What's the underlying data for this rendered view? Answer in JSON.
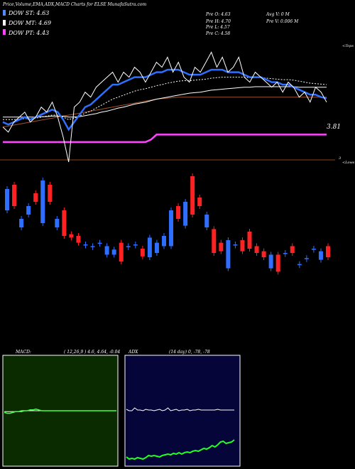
{
  "header": {
    "title": "Price,Volume,EMA,ADX,MACD Charts for ELSE MunafaSutra.com",
    "legend": [
      {
        "label": "DOW ST: 4.63",
        "color": "#4e8cff"
      },
      {
        "label": "DOW MT: 4.69",
        "color": "#ffffff"
      },
      {
        "label": "DOW PT: 4.43",
        "color": "#ff44ff"
      }
    ],
    "stats_col1": [
      "Pre  O: 4.63",
      "Pre  H: 4.70",
      "Pre  L: 4.57",
      "Pre  C: 4.58"
    ],
    "stats_col2": [
      "Avg V: 0  M",
      "Pre  V: 0.006  M"
    ]
  },
  "price_panel": {
    "top_label": "<Tops",
    "bottom_label": "<Lows",
    "price_label": "3.81",
    "bottom_tick": "3",
    "top_markers": "5",
    "bottom_markers": "3"
  },
  "macd_panel": {
    "label": "MACD:",
    "params": "( 12,26,9 ) 4.6, 4.64, -0.04",
    "bg_color": "#0a2a00"
  },
  "adx_panel": {
    "label": "ADX",
    "params": "(14  day) 0, -78, -78",
    "bg_color": "#05053a"
  },
  "chart_data": {
    "type": "line",
    "price_series": [
      4.4,
      4.3,
      4.5,
      4.6,
      4.7,
      4.5,
      4.6,
      4.8,
      4.7,
      4.9,
      4.6,
      4.2,
      3.7,
      4.8,
      4.9,
      5.1,
      5.0,
      5.2,
      5.3,
      5.4,
      5.5,
      5.3,
      5.5,
      5.4,
      5.6,
      5.5,
      5.3,
      5.5,
      5.7,
      5.6,
      5.8,
      5.5,
      5.7,
      5.4,
      5.3,
      5.6,
      5.5,
      5.7,
      5.9,
      5.6,
      5.8,
      5.5,
      5.6,
      5.8,
      5.4,
      5.3,
      5.5,
      5.4,
      5.3,
      5.2,
      5.3,
      5.1,
      5.3,
      5.2,
      5.0,
      5.1,
      4.9,
      5.2,
      5.1,
      4.9
    ],
    "ema_short": [
      4.5,
      4.45,
      4.5,
      4.55,
      4.6,
      4.55,
      4.6,
      4.65,
      4.7,
      4.75,
      4.7,
      4.55,
      4.35,
      4.5,
      4.65,
      4.8,
      4.85,
      4.95,
      5.05,
      5.15,
      5.25,
      5.25,
      5.3,
      5.35,
      5.4,
      5.4,
      5.4,
      5.45,
      5.5,
      5.5,
      5.55,
      5.55,
      5.55,
      5.5,
      5.45,
      5.45,
      5.45,
      5.5,
      5.55,
      5.55,
      5.55,
      5.5,
      5.5,
      5.5,
      5.45,
      5.4,
      5.4,
      5.4,
      5.35,
      5.3,
      5.3,
      5.25,
      5.25,
      5.2,
      5.15,
      5.1,
      5.05,
      5.05,
      5.0,
      4.98
    ],
    "ema_mid": [
      4.55,
      4.55,
      4.55,
      4.56,
      4.57,
      4.57,
      4.58,
      4.6,
      4.62,
      4.64,
      4.64,
      4.6,
      4.55,
      4.58,
      4.62,
      4.68,
      4.72,
      4.78,
      4.84,
      4.9,
      4.96,
      5.0,
      5.04,
      5.08,
      5.12,
      5.15,
      5.17,
      5.2,
      5.23,
      5.25,
      5.28,
      5.3,
      5.32,
      5.33,
      5.33,
      5.34,
      5.35,
      5.36,
      5.38,
      5.39,
      5.4,
      5.4,
      5.4,
      5.4,
      5.4,
      5.39,
      5.39,
      5.39,
      5.38,
      5.37,
      5.36,
      5.35,
      5.35,
      5.34,
      5.32,
      5.3,
      5.28,
      5.27,
      5.26,
      5.25
    ],
    "ema_long": [
      4.6,
      4.6,
      4.6,
      4.6,
      4.6,
      4.6,
      4.6,
      4.61,
      4.61,
      4.62,
      4.62,
      4.62,
      4.6,
      4.6,
      4.61,
      4.63,
      4.65,
      4.67,
      4.7,
      4.72,
      4.75,
      4.78,
      4.8,
      4.83,
      4.86,
      4.88,
      4.9,
      4.93,
      4.96,
      4.98,
      5.0,
      5.02,
      5.04,
      5.06,
      5.08,
      5.09,
      5.1,
      5.12,
      5.14,
      5.15,
      5.16,
      5.17,
      5.18,
      5.19,
      5.2,
      5.2,
      5.21,
      5.21,
      5.21,
      5.21,
      5.21,
      5.21,
      5.21,
      5.21,
      5.2,
      5.2,
      5.2,
      5.2,
      5.2,
      5.2
    ],
    "support": [
      4.4,
      4.42,
      4.44,
      4.46,
      4.48,
      4.5,
      4.52,
      4.54,
      4.56,
      4.58,
      4.6,
      4.62,
      4.64,
      4.66,
      4.68,
      4.7,
      4.72,
      4.74,
      4.76,
      4.78,
      4.8,
      4.82,
      4.84,
      4.86,
      4.88,
      4.9,
      4.92,
      4.94,
      4.96,
      4.97,
      4.98,
      4.99,
      5.0,
      5.0,
      5.0,
      5.0,
      5.0,
      5.0,
      5.0,
      5.0,
      5.0,
      5.0,
      5.0,
      5.0,
      5.0,
      5.0,
      5.0,
      5.0,
      5.0,
      5.0,
      5.0,
      5.0,
      5.0,
      5.0,
      5.0,
      5.0,
      5.0,
      5.0,
      5.0,
      5.0
    ],
    "dow_pt": [
      4.1,
      4.1,
      4.1,
      4.1,
      4.1,
      4.1,
      4.1,
      4.1,
      4.1,
      4.1,
      4.1,
      4.1,
      4.1,
      4.1,
      4.1,
      4.1,
      4.1,
      4.1,
      4.1,
      4.1,
      4.1,
      4.1,
      4.1,
      4.1,
      4.1,
      4.1,
      4.1,
      4.15,
      4.25,
      4.25,
      4.25,
      4.25,
      4.25,
      4.25,
      4.25,
      4.25,
      4.25,
      4.25,
      4.25,
      4.25,
      4.25,
      4.25,
      4.25,
      4.25,
      4.25,
      4.25,
      4.25,
      4.25,
      4.25,
      4.25,
      4.25,
      4.25,
      4.25,
      4.25,
      4.25,
      4.25,
      4.25,
      4.25,
      4.25,
      4.25
    ],
    "candles": [
      {
        "dir": "up",
        "o": 40,
        "c": 15
      },
      {
        "dir": "down",
        "o": 10,
        "c": 35
      },
      {
        "dir": "up",
        "o": 60,
        "c": 50
      },
      {
        "dir": "up",
        "o": 45,
        "c": 35
      },
      {
        "dir": "down",
        "o": 20,
        "c": 30
      },
      {
        "dir": "up",
        "o": 55,
        "c": 5
      },
      {
        "dir": "down",
        "o": 10,
        "c": 30
      },
      {
        "dir": "up",
        "o": 60,
        "c": 50
      },
      {
        "dir": "down",
        "o": 40,
        "c": 70
      },
      {
        "dir": "down",
        "o": 68,
        "c": 72
      },
      {
        "dir": "down",
        "o": 70,
        "c": 78
      },
      {
        "dir": "flat",
        "o": 80,
        "c": 80
      },
      {
        "dir": "flat",
        "o": 82,
        "c": 82
      },
      {
        "dir": "flat",
        "o": 78,
        "c": 78
      },
      {
        "dir": "up",
        "o": 92,
        "c": 82
      },
      {
        "dir": "up",
        "o": 92,
        "c": 86
      },
      {
        "dir": "down",
        "o": 78,
        "c": 100
      },
      {
        "dir": "flat",
        "o": 82,
        "c": 82
      },
      {
        "dir": "flat",
        "o": 80,
        "c": 80
      },
      {
        "dir": "down",
        "o": 85,
        "c": 94
      },
      {
        "dir": "up",
        "o": 95,
        "c": 72
      },
      {
        "dir": "up",
        "o": 90,
        "c": 78
      },
      {
        "dir": "up",
        "o": 82,
        "c": 70
      },
      {
        "dir": "up",
        "o": 82,
        "c": 40
      },
      {
        "dir": "down",
        "o": 35,
        "c": 50
      },
      {
        "dir": "up",
        "o": 58,
        "c": 30
      },
      {
        "dir": "down",
        "o": 0,
        "c": 45
      },
      {
        "dir": "down",
        "o": 25,
        "c": 35
      },
      {
        "dir": "up",
        "o": 60,
        "c": 45
      },
      {
        "dir": "down",
        "o": 62,
        "c": 90
      },
      {
        "dir": "down",
        "o": 78,
        "c": 88
      },
      {
        "dir": "up",
        "o": 108,
        "c": 75
      },
      {
        "dir": "flat",
        "o": 80,
        "c": 80
      },
      {
        "dir": "down",
        "o": 75,
        "c": 88
      },
      {
        "dir": "down",
        "o": 65,
        "c": 85
      },
      {
        "dir": "down",
        "o": 82,
        "c": 90
      },
      {
        "dir": "down",
        "o": 88,
        "c": 95
      },
      {
        "dir": "up",
        "o": 108,
        "c": 92
      },
      {
        "dir": "down",
        "o": 92,
        "c": 112
      },
      {
        "dir": "flat",
        "o": 90,
        "c": 90
      },
      {
        "dir": "down",
        "o": 82,
        "c": 90
      },
      {
        "dir": "flat",
        "o": 103,
        "c": 103
      },
      {
        "dir": "flat",
        "o": 96,
        "c": 96
      },
      {
        "dir": "flat",
        "o": 85,
        "c": 85
      },
      {
        "dir": "up",
        "o": 98,
        "c": 88
      },
      {
        "dir": "down",
        "o": 82,
        "c": 95
      }
    ],
    "macd": [
      4.48,
      4.47,
      4.47,
      4.48,
      4.49,
      4.49,
      4.5,
      4.5,
      4.5,
      4.51,
      4.51,
      4.52,
      4.51,
      4.5,
      4.5,
      4.5,
      4.5,
      4.5,
      4.5,
      4.5,
      4.5,
      4.5,
      4.5,
      4.5,
      4.5,
      4.5,
      4.5,
      4.5,
      4.5,
      4.5,
      4.5,
      4.5,
      4.5,
      4.5,
      4.5,
      4.5,
      4.5,
      4.5,
      4.5,
      4.5
    ],
    "macd_signal": [
      4.49,
      4.49,
      4.49,
      4.49,
      4.49,
      4.49,
      4.49,
      4.5,
      4.5,
      4.5,
      4.5,
      4.5,
      4.5,
      4.5,
      4.5,
      4.5,
      4.5,
      4.5,
      4.5,
      4.5,
      4.5,
      4.5,
      4.5,
      4.5,
      4.5,
      4.5,
      4.5,
      4.5,
      4.5,
      4.5,
      4.5,
      4.5,
      4.5,
      4.5,
      4.5,
      4.5,
      4.5,
      4.5,
      4.5,
      4.5
    ],
    "adx": [
      11,
      8,
      9,
      8,
      10,
      9,
      8,
      10,
      13,
      12,
      13,
      12,
      11,
      13,
      14,
      15,
      14,
      16,
      15,
      17,
      15,
      17,
      18,
      17,
      19,
      20,
      19,
      21,
      23,
      22,
      24,
      27,
      25,
      28,
      32,
      33,
      30,
      31,
      32,
      35
    ],
    "adx_ref": [
      78,
      76,
      76,
      80,
      77,
      77,
      76,
      78,
      77,
      77,
      76,
      77,
      78,
      76,
      77,
      80,
      76,
      77,
      78,
      76,
      77,
      77,
      78,
      76,
      77,
      77,
      78,
      77,
      77,
      77,
      77,
      77,
      77,
      78,
      77,
      77,
      77,
      77,
      77,
      77
    ]
  }
}
